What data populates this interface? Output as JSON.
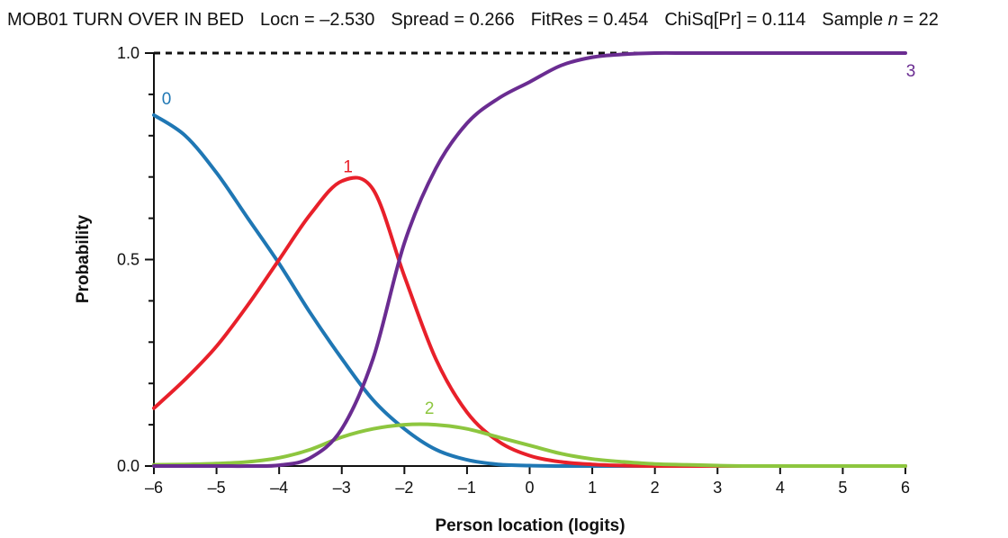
{
  "title": {
    "item": "MOB01 TURN OVER IN BED",
    "locn": "Locn = –2.530",
    "spread": "Spread = 0.266",
    "fitres": "FitRes = 0.454",
    "chisq": "ChiSq[Pr] = 0.114",
    "sample_prefix": "Sample ",
    "sample_n": "n",
    "sample_suffix": " = 22"
  },
  "chart_data": {
    "type": "line",
    "xlabel": "Person location (logits)",
    "ylabel": "Probability",
    "xlim": [
      -6,
      6
    ],
    "ylim": [
      0,
      1
    ],
    "x_ticks": [
      -6,
      -5,
      -4,
      -3,
      -2,
      -1,
      0,
      1,
      2,
      3,
      4,
      5,
      6
    ],
    "x_tick_labels": [
      "–6",
      "–5",
      "–4",
      "–3",
      "–2",
      "–1",
      "0",
      "1",
      "2",
      "3",
      "4",
      "5",
      "6"
    ],
    "y_ticks": [
      0.0,
      0.5,
      1.0
    ],
    "y_tick_labels": [
      "0.0",
      "0.5",
      "1.0"
    ],
    "y_minor_ticks": [
      0.1,
      0.2,
      0.3,
      0.4,
      0.6,
      0.7,
      0.8,
      0.9
    ],
    "reference_line": {
      "y": 1.0,
      "style": "dashed",
      "color": "#111111"
    },
    "x": [
      -6,
      -5.5,
      -5,
      -4.5,
      -4,
      -3.5,
      -3,
      -2.5,
      -2,
      -1.5,
      -1,
      -0.5,
      0,
      0.5,
      1,
      1.5,
      2,
      2.5,
      3,
      3.5,
      4,
      4.5,
      5,
      5.5,
      6
    ],
    "series": [
      {
        "name": "0",
        "color": "#1f77b4",
        "values": [
          0.85,
          0.8,
          0.71,
          0.6,
          0.49,
          0.37,
          0.26,
          0.16,
          0.09,
          0.04,
          0.015,
          0.004,
          0.001,
          0,
          0,
          0,
          0,
          0,
          0,
          0,
          0,
          0,
          0,
          0,
          0
        ]
      },
      {
        "name": "1",
        "color": "#e8202a",
        "values": [
          0.14,
          0.21,
          0.29,
          0.39,
          0.5,
          0.61,
          0.69,
          0.67,
          0.46,
          0.26,
          0.13,
          0.06,
          0.025,
          0.01,
          0.004,
          0.001,
          0,
          0,
          0,
          0,
          0,
          0,
          0,
          0,
          0
        ]
      },
      {
        "name": "2",
        "color": "#8dc63f",
        "values": [
          0.003,
          0.004,
          0.006,
          0.01,
          0.02,
          0.04,
          0.07,
          0.09,
          0.1,
          0.1,
          0.09,
          0.07,
          0.05,
          0.03,
          0.017,
          0.01,
          0.005,
          0.003,
          0.001,
          0,
          0,
          0,
          0,
          0,
          0
        ]
      },
      {
        "name": "3",
        "color": "#6a2c91",
        "values": [
          0,
          0,
          0,
          0,
          0.002,
          0.02,
          0.09,
          0.26,
          0.54,
          0.72,
          0.83,
          0.89,
          0.93,
          0.97,
          0.99,
          0.997,
          1.0,
          1.0,
          1.0,
          1.0,
          1.0,
          1.0,
          1.0,
          1.0,
          1.0
        ]
      }
    ]
  }
}
